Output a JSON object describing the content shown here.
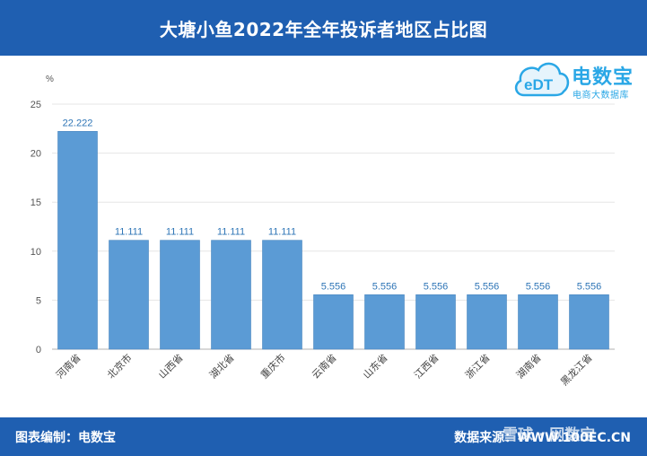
{
  "title": "大塘小鱼2022年全年投诉者地区占比图",
  "logo": {
    "name": "电数宝",
    "sub": "电商大数据库",
    "mark_text": "eDT"
  },
  "footer": {
    "left": "图表编制：电数宝",
    "right": "数据来源：WWW.100EC.CN"
  },
  "watermark": "雪球 · 网数宝",
  "colors": {
    "header": "#1f5fb1",
    "bar": "#5b9bd5",
    "label": "#2e75b6",
    "brand": "#2aa7e6"
  },
  "chart_data": {
    "type": "bar",
    "ylabel": "%",
    "categories": [
      "河南省",
      "北京市",
      "山西省",
      "湖北省",
      "重庆市",
      "云南省",
      "山东省",
      "江西省",
      "浙江省",
      "湖南省",
      "黑龙江省"
    ],
    "values": [
      22.222,
      11.111,
      11.111,
      11.111,
      11.111,
      5.556,
      5.556,
      5.556,
      5.556,
      5.556,
      5.556
    ],
    "value_labels": [
      "22.222",
      "11.111",
      "11.111",
      "11.111",
      "11.111",
      "5.556",
      "5.556",
      "5.556",
      "5.556",
      "5.556",
      "5.556"
    ],
    "ylim": [
      0,
      25
    ],
    "yticks": [
      0,
      5,
      10,
      15,
      20,
      25
    ],
    "grid": true
  }
}
